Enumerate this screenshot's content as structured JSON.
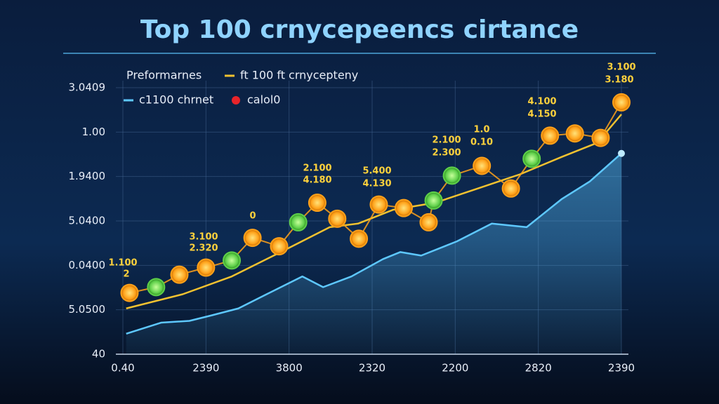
{
  "chart_data": {
    "type": "line",
    "title": "Top 100 crnycepeencs cirtance",
    "legend_title": "Preformarnes",
    "xlim": [
      0,
      6
    ],
    "xticks": [
      {
        "value": 0,
        "label": "0.40"
      },
      {
        "value": 1,
        "label": "2390"
      },
      {
        "value": 2,
        "label": "3800"
      },
      {
        "value": 3,
        "label": "2320"
      },
      {
        "value": 4,
        "label": "2200"
      },
      {
        "value": 5,
        "label": "2820"
      },
      {
        "value": 6,
        "label": "2390"
      }
    ],
    "ylim": [
      0,
      6
    ],
    "yticks": [
      {
        "value": 0,
        "label": "40"
      },
      {
        "value": 1,
        "label": "5.0500"
      },
      {
        "value": 2,
        "label": "0.0400"
      },
      {
        "value": 3,
        "label": "5.0400"
      },
      {
        "value": 4,
        "label": "1.9400"
      },
      {
        "value": 5,
        "label": "1.00"
      },
      {
        "value": 6,
        "label": "3.0409"
      }
    ],
    "grid": true,
    "series": [
      {
        "name": "ft 100  ft crnycepteny",
        "color": "#f2c230",
        "x": [
          0.04,
          0.72,
          1.31,
          1.9,
          2.49,
          2.83,
          3.25,
          3.76,
          4.27,
          4.78,
          5.28,
          5.71,
          6.0
        ],
        "values": [
          1.03,
          1.35,
          1.75,
          2.3,
          2.86,
          2.94,
          3.25,
          3.41,
          3.73,
          4.05,
          4.44,
          4.76,
          5.4
        ]
      },
      {
        "name": "c1100 chrnet",
        "color": "#5ec8ff",
        "area": true,
        "x": [
          0.04,
          0.46,
          0.8,
          1.06,
          1.39,
          1.73,
          2.16,
          2.41,
          2.75,
          3.13,
          3.34,
          3.59,
          4.02,
          4.44,
          4.86,
          5.28,
          5.62,
          6.0
        ],
        "values": [
          0.46,
          0.71,
          0.75,
          0.87,
          1.03,
          1.35,
          1.75,
          1.51,
          1.75,
          2.14,
          2.3,
          2.22,
          2.54,
          2.94,
          2.86,
          3.49,
          3.89,
          4.52
        ]
      },
      {
        "name": "calol0",
        "color": "#ffa21a",
        "markers": true,
        "x": [
          0.08,
          0.4,
          0.68,
          1.0,
          1.31,
          1.56,
          1.88,
          2.11,
          2.34,
          2.58,
          2.84,
          3.08,
          3.38,
          3.68,
          3.74,
          3.96,
          4.32,
          4.67,
          4.92,
          5.14,
          5.44,
          5.75,
          6.0
        ],
        "values": [
          1.38,
          1.51,
          1.79,
          1.95,
          2.11,
          2.62,
          2.43,
          2.97,
          3.41,
          3.05,
          2.6,
          3.37,
          3.29,
          2.97,
          3.46,
          4.02,
          4.24,
          3.73,
          4.4,
          4.92,
          4.97,
          4.87,
          5.67
        ],
        "marker_colors": [
          "#ffa21a",
          "#5fd04a",
          "#ffa21a",
          "#ffa21a",
          "#5fd04a",
          "#ffa21a",
          "#ffa21a",
          "#5fd04a",
          "#ffa21a",
          "#ffa21a",
          "#ffa21a",
          "#ffa21a",
          "#ffa21a",
          "#ffa21a",
          "#5fd04a",
          "#5fd04a",
          "#ffa21a",
          "#ffa21a",
          "#5fd04a",
          "#ffa21a",
          "#ffa21a",
          "#ffa21a",
          "#ffa21a"
        ]
      }
    ],
    "annotations": [
      "1.100",
      "2",
      "3.100",
      "2.320",
      "0",
      "2.100",
      "4.180",
      "5.400",
      "4.130",
      "2.100",
      "2.300",
      "1.0",
      "0.10",
      "4.100",
      "4.150",
      "3.100",
      "3.180"
    ]
  }
}
